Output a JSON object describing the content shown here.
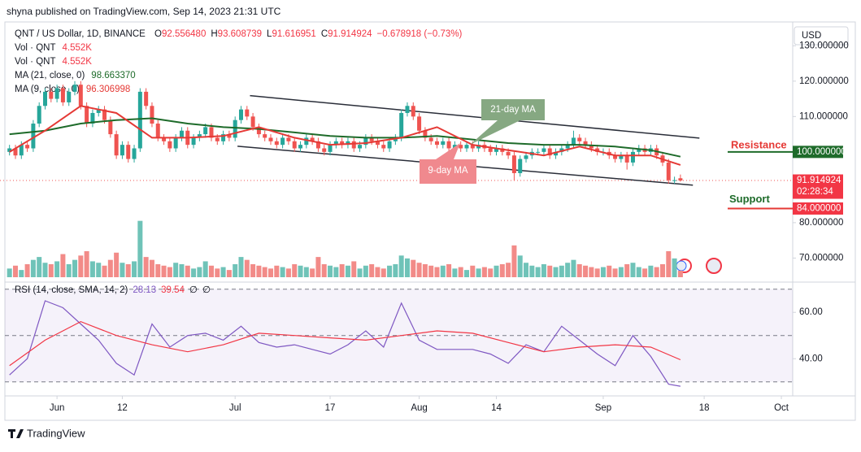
{
  "header": {
    "published": "shyna published on TradingView.com, Sep 14, 2023 21:31 UTC",
    "usd": "USD",
    "brand": "TradingView"
  },
  "chart_data": {
    "type": "candlestick",
    "symbol": "QNT / US Dollar, 1D, BINANCE",
    "ohlc": [
      {
        "key": "O",
        "value": "92.556480"
      },
      {
        "key": "H",
        "value": "93.608739"
      },
      {
        "key": "L",
        "value": "91.616951"
      },
      {
        "key": "C",
        "value": "91.914924"
      }
    ],
    "change": "−0.678918 (−0.73%)",
    "info_lines": [
      {
        "label": "Vol · QNT",
        "value": "4.552K"
      },
      {
        "label": "Vol · QNT",
        "value": "4.552K"
      },
      {
        "label": "MA (21, close, 0)",
        "value": "98.663370"
      },
      {
        "label": "MA (9, close, 0)",
        "value": "96.306998"
      }
    ],
    "up_color": "#26a69a",
    "down_color": "#ef5350",
    "vol_up_color": "#6fc3b8",
    "vol_down_color": "#f28b88",
    "xlim": [
      -1.6,
      131.5
    ],
    "xticks": [
      {
        "value": 8,
        "label": "Jun"
      },
      {
        "value": 19,
        "label": "12"
      },
      {
        "value": 38,
        "label": "Jul"
      },
      {
        "value": 54,
        "label": "17"
      },
      {
        "value": 69,
        "label": "Aug"
      },
      {
        "value": 82,
        "label": "14"
      },
      {
        "value": 100,
        "label": "Sep"
      },
      {
        "value": 117,
        "label": "18"
      },
      {
        "value": 130,
        "label": "Oct"
      }
    ],
    "ylim": [
      65.5,
      136.5
    ],
    "yticks": [
      {
        "value": 130,
        "label": "130.000000"
      },
      {
        "value": 120,
        "label": "120.000000"
      },
      {
        "value": 110,
        "label": "110.000000"
      },
      {
        "value": 80,
        "label": "80.000000"
      },
      {
        "value": 70,
        "label": "70.000000"
      }
    ],
    "open": [
      100,
      101,
      99,
      102,
      101,
      108,
      113,
      117,
      115,
      118,
      114,
      117,
      119,
      113,
      108,
      111,
      112,
      109,
      105,
      99,
      102,
      98,
      101,
      117,
      113,
      108,
      104,
      103,
      101,
      104,
      106,
      102,
      104,
      105,
      107,
      104,
      103,
      105,
      104,
      109,
      112,
      110,
      107,
      105,
      104,
      103,
      102,
      104,
      103,
      101,
      102,
      104,
      103,
      101,
      100,
      102,
      103,
      102,
      103,
      101,
      102,
      104,
      103,
      102,
      101,
      103,
      104,
      111,
      113,
      110,
      106,
      104,
      103,
      102,
      103,
      101,
      102,
      101,
      102,
      101,
      102,
      101,
      100,
      101,
      100,
      99,
      94,
      98,
      99,
      100,
      100,
      101,
      99,
      100,
      101,
      102,
      104,
      103,
      102,
      101,
      100,
      100,
      99,
      98,
      99,
      97,
      100,
      101,
      100,
      101,
      99,
      97,
      92,
      92.55648
    ],
    "high": [
      102,
      102,
      103,
      103,
      109,
      114,
      118,
      118,
      119,
      119,
      118,
      120,
      120,
      114,
      112,
      113,
      113,
      110,
      106,
      103,
      103,
      102,
      118,
      118,
      114,
      109,
      105,
      104,
      105,
      107,
      107,
      105,
      106,
      108,
      108,
      105,
      106,
      106,
      110,
      113,
      113,
      111,
      108,
      106,
      105,
      104,
      105,
      105,
      104,
      103,
      105,
      105,
      104,
      102,
      103,
      104,
      104,
      104,
      104,
      103,
      105,
      105,
      104,
      103,
      104,
      105,
      112,
      114,
      114,
      111,
      107,
      105,
      104,
      104,
      104,
      103,
      103,
      103,
      103,
      103,
      103,
      102,
      102,
      102,
      101,
      100,
      99,
      100,
      101,
      101,
      102,
      102,
      101,
      102,
      103,
      106,
      105,
      104,
      103,
      102,
      101,
      101,
      100,
      100,
      100,
      101,
      102,
      102,
      102,
      102,
      100,
      98,
      93,
      93.608739
    ],
    "low": [
      99,
      98,
      98,
      100,
      100,
      107,
      112,
      114,
      114,
      113,
      113,
      116,
      112,
      107,
      107,
      110,
      108,
      104,
      98,
      98,
      97,
      97,
      100,
      112,
      107,
      103,
      102,
      100,
      100,
      103,
      101,
      101,
      103,
      104,
      103,
      102,
      102,
      103,
      103,
      108,
      109,
      106,
      104,
      103,
      102,
      101,
      101,
      102,
      100,
      100,
      101,
      102,
      100,
      99,
      99,
      101,
      101,
      101,
      100,
      100,
      101,
      102,
      101,
      100,
      100,
      102,
      103,
      110,
      109,
      105,
      103,
      102,
      101,
      101,
      100,
      100,
      100,
      100,
      100,
      100,
      100,
      99,
      99,
      99,
      98,
      92,
      93,
      97,
      98,
      99,
      99,
      98,
      98,
      99,
      100,
      101,
      102,
      101,
      100,
      99,
      99,
      98,
      97,
      97,
      95,
      96,
      99,
      99,
      99,
      98,
      96,
      91,
      91,
      91.616951
    ],
    "close": [
      101,
      99,
      102,
      101,
      108,
      113,
      117,
      115,
      118,
      114,
      117,
      119,
      113,
      108,
      111,
      112,
      109,
      105,
      99,
      102,
      98,
      101,
      117,
      113,
      108,
      104,
      103,
      101,
      104,
      106,
      102,
      104,
      105,
      107,
      104,
      103,
      105,
      104,
      109,
      112,
      110,
      107,
      105,
      104,
      103,
      102,
      104,
      103,
      101,
      102,
      104,
      103,
      101,
      100,
      102,
      103,
      102,
      103,
      101,
      102,
      104,
      103,
      102,
      101,
      103,
      104,
      111,
      113,
      110,
      106,
      104,
      103,
      102,
      103,
      101,
      102,
      101,
      102,
      101,
      102,
      101,
      100,
      101,
      100,
      99,
      94,
      98,
      99,
      100,
      100,
      101,
      99,
      100,
      101,
      102,
      104,
      103,
      102,
      101,
      100,
      100,
      99,
      98,
      99,
      97,
      100,
      101,
      100,
      101,
      99,
      97,
      92,
      92,
      91.914924
    ],
    "vlim": [
      0,
      45
    ],
    "volume": [
      6,
      8,
      5,
      9,
      12,
      14,
      10,
      9,
      11,
      16,
      9,
      12,
      15,
      18,
      11,
      10,
      8,
      12,
      17,
      10,
      9,
      11,
      39,
      14,
      12,
      9,
      8,
      7,
      10,
      9,
      8,
      6,
      7,
      11,
      8,
      6,
      7,
      5,
      9,
      14,
      12,
      9,
      8,
      7,
      6,
      8,
      7,
      6,
      9,
      8,
      7,
      6,
      14,
      9,
      8,
      7,
      9,
      8,
      11,
      6,
      8,
      9,
      7,
      6,
      8,
      9,
      15,
      13,
      12,
      10,
      9,
      8,
      7,
      8,
      9,
      6,
      7,
      5,
      8,
      6,
      7,
      6,
      8,
      9,
      10,
      22,
      15,
      10,
      8,
      7,
      9,
      8,
      7,
      8,
      10,
      12,
      9,
      8,
      7,
      6,
      7,
      8,
      6,
      7,
      9,
      10,
      7,
      6,
      8,
      7,
      9,
      18,
      13,
      4.552
    ],
    "lines": [
      {
        "name": "MA 21",
        "color": "#1e6b2a",
        "x": [
          0,
          6,
          12,
          18,
          24,
          30,
          36,
          42,
          48,
          54,
          60,
          66,
          72,
          78,
          84,
          90,
          96,
          102,
          108,
          113
        ],
        "values": [
          105,
          106,
          108,
          109,
          109.5,
          108,
          107,
          106.5,
          105.5,
          104.5,
          104,
          104,
          104.5,
          103.5,
          102.5,
          102,
          102,
          101.5,
          100.5,
          98.66337
        ]
      },
      {
        "name": "MA 9",
        "color": "#e53935",
        "x": [
          0,
          6,
          12,
          18,
          24,
          30,
          36,
          42,
          48,
          54,
          60,
          66,
          72,
          78,
          84,
          90,
          96,
          102,
          108,
          113
        ],
        "values": [
          100,
          106,
          113,
          111,
          104,
          104,
          104.5,
          107,
          104,
          102,
          102.5,
          104,
          107,
          102,
          100.5,
          99,
          101.5,
          99,
          99,
          96.306998
        ]
      }
    ],
    "channel": [
      {
        "x": [
          40.5,
          116.2
        ],
        "values": [
          115.9,
          103.9
        ]
      },
      {
        "x": [
          38.4,
          115.1
        ],
        "values": [
          101.6,
          90.6
        ]
      }
    ],
    "callouts": [
      {
        "text": "21-day MA",
        "color": "#86a882"
      },
      {
        "text": "9-day MA",
        "color": "#f0898e"
      }
    ],
    "levels": [
      {
        "label": "Resistance",
        "value": 100,
        "text_color": "#e53935",
        "line_color": "#1e6b2a"
      },
      {
        "label": "Support",
        "value": 84,
        "text_color": "#1e6b2a",
        "line_color": "#e53935"
      }
    ],
    "price_badges": [
      {
        "value": 100,
        "label": "100.000000",
        "color": "#1e6b2a"
      },
      {
        "value": 91.914924,
        "label": "91.914924",
        "sub": "02:28:34",
        "color": "#f23645"
      },
      {
        "value": 84,
        "label": "84.000000",
        "color": "#f23645"
      }
    ],
    "rsi": {
      "title": "RSI (14, close, SMA, 14, 2)",
      "value_labels": [
        "28.13",
        "39.54",
        "∅",
        "∅"
      ],
      "ylim": [
        25,
        72
      ],
      "yticks": [
        {
          "value": 40,
          "label": "40.00"
        },
        {
          "value": 60,
          "label": "60.00"
        }
      ],
      "levels": [
        70,
        50,
        30
      ],
      "series": [
        {
          "name": "RSI",
          "color": "#7e57c2",
          "x": [
            0,
            3,
            6,
            9,
            12,
            15,
            18,
            21,
            24,
            27,
            30,
            33,
            36,
            39,
            42,
            45,
            48,
            51,
            54,
            57,
            60,
            63,
            66,
            69,
            72,
            75,
            78,
            81,
            84,
            87,
            90,
            93,
            96,
            99,
            102,
            105,
            108,
            111,
            113
          ],
          "values": [
            33,
            40,
            65,
            62,
            55,
            48,
            38,
            33,
            55,
            45,
            50,
            51,
            48,
            54,
            47,
            45,
            46,
            44,
            42,
            46,
            52,
            45,
            64,
            48,
            44,
            44,
            44,
            42,
            38,
            46,
            43,
            54,
            48,
            42,
            37,
            50,
            41,
            29,
            28.13
          ]
        },
        {
          "name": "RSI SMA",
          "color": "#f23645",
          "x": [
            0,
            6,
            12,
            18,
            24,
            30,
            36,
            42,
            48,
            54,
            60,
            66,
            72,
            78,
            84,
            90,
            96,
            102,
            108,
            113
          ],
          "values": [
            37,
            48,
            56,
            50,
            46,
            43,
            46,
            51,
            50,
            49,
            48,
            50,
            52,
            51,
            47,
            43,
            45,
            46,
            45,
            39.54
          ]
        }
      ]
    }
  }
}
